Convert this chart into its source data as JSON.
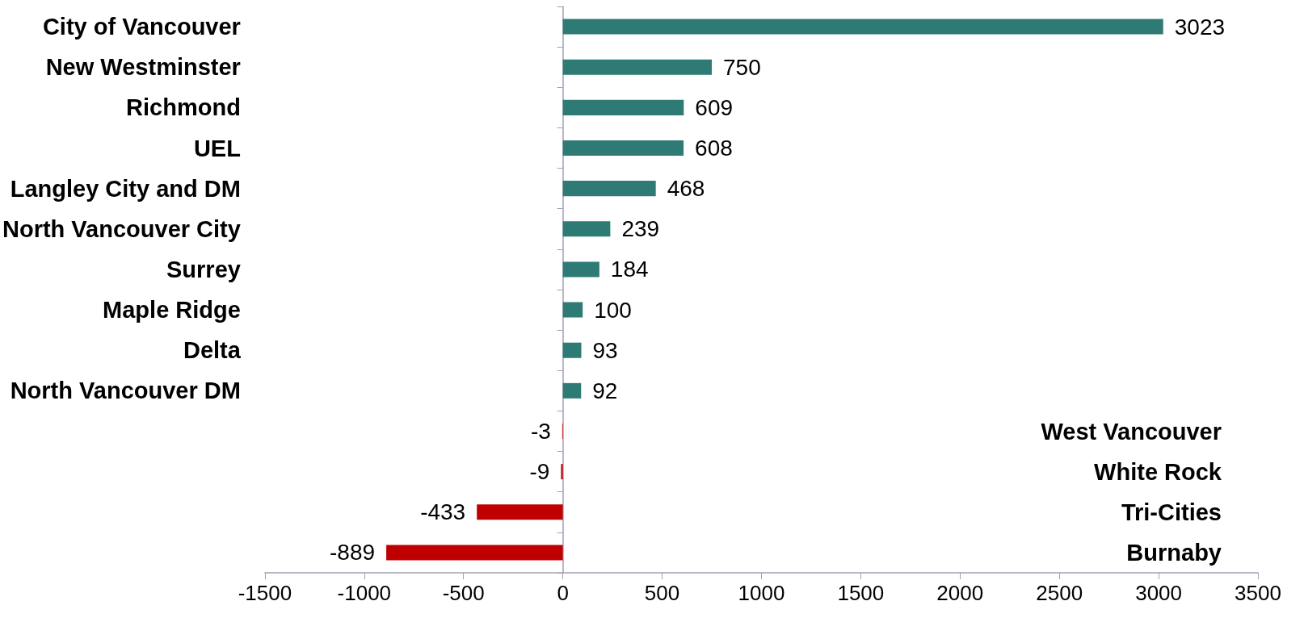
{
  "chart_data": {
    "type": "bar",
    "orientation": "horizontal",
    "categories": [
      "City of Vancouver",
      "New Westminster",
      "Richmond",
      "UEL",
      "Langley City and DM",
      "North Vancouver City",
      "Surrey",
      "Maple Ridge",
      "Delta",
      "North Vancouver DM",
      "West Vancouver",
      "White Rock",
      "Tri-Cities",
      "Burnaby"
    ],
    "values": [
      3023,
      750,
      609,
      608,
      468,
      239,
      184,
      100,
      93,
      92,
      -3,
      -9,
      -433,
      -889
    ],
    "colors": [
      "#2e7b76",
      "#2e7b76",
      "#2e7b76",
      "#2e7b76",
      "#2e7b76",
      "#2e7b76",
      "#2e7b76",
      "#2e7b76",
      "#2e7b76",
      "#2e7b76",
      "#c00000",
      "#c00000",
      "#c00000",
      "#c00000"
    ],
    "xlim": [
      -1500,
      3500
    ],
    "xticks": [
      -1500,
      -1000,
      -500,
      0,
      500,
      1000,
      1500,
      2000,
      2500,
      3000,
      3500
    ],
    "data_labels": true
  }
}
